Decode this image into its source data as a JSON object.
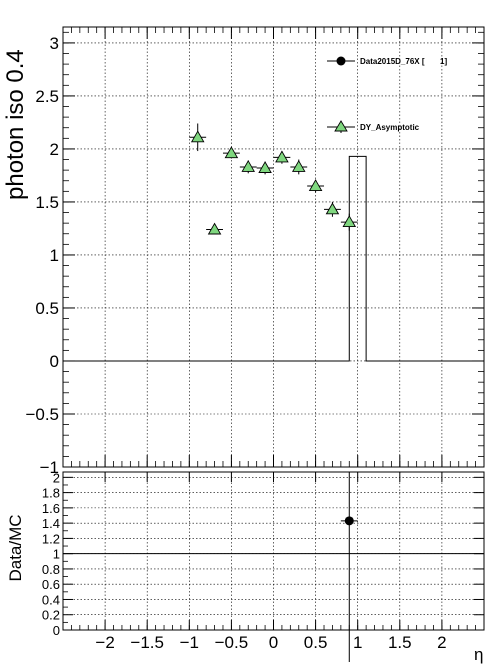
{
  "chart_data": [
    {
      "type": "scatter",
      "ylabel": "photon iso 0.4",
      "xlim": [
        -2.5,
        2.5
      ],
      "ylim": [
        -1,
        3.15
      ],
      "grid": true,
      "legend_position": "top-right",
      "xticks": [
        -2,
        -1.5,
        -1,
        -0.5,
        0,
        0.5,
        1,
        1.5,
        2
      ],
      "yticks": [
        -1,
        -0.5,
        0,
        0.5,
        1,
        1.5,
        2,
        2.5,
        3
      ],
      "xtick_labels": [
        "−2",
        "−1.5",
        "−1",
        "−0.5",
        "0",
        "0.5",
        "1",
        "1.5",
        "2"
      ],
      "ytick_labels": [
        "−1",
        "−0.5",
        "0",
        "0.5",
        "1",
        "1.5",
        "2",
        "2.5",
        "3"
      ],
      "series": [
        {
          "name": "Data2015D_76X [       1]",
          "marker": "circle",
          "color": "#000000",
          "style": "histogram",
          "x": [
            -2.4,
            -2.2,
            -2.0,
            -1.8,
            -1.6,
            -1.4,
            -1.2,
            -1.0,
            -0.8,
            -0.6,
            -0.4,
            -0.2,
            0.0,
            0.2,
            0.4,
            0.6,
            0.8,
            1.0,
            1.2,
            1.4,
            1.6,
            1.8,
            2.0,
            2.2,
            2.4
          ],
          "values": [
            0,
            0,
            0,
            0,
            0,
            0,
            0,
            0,
            0,
            0,
            0,
            0,
            0,
            0,
            0,
            0,
            0,
            1.93,
            0,
            0,
            0,
            0,
            0,
            0,
            0
          ],
          "bin_edges_low": [
            -2.5,
            -2.3,
            -2.1,
            -1.9,
            -1.7,
            -1.5,
            -1.3,
            -1.1,
            -0.9,
            -0.7,
            -0.5,
            -0.3,
            -0.1,
            0.1,
            0.3,
            0.5,
            0.7,
            0.9,
            1.1,
            1.3,
            1.5,
            1.7,
            1.9,
            2.1,
            2.3
          ]
        },
        {
          "name": "DY_Asymptotic",
          "marker": "triangle",
          "color": "#7fd77f",
          "x": [
            -0.9,
            -0.7,
            -0.5,
            -0.3,
            -0.1,
            0.1,
            0.3,
            0.5,
            0.7,
            0.9
          ],
          "values": [
            2.11,
            1.24,
            1.96,
            1.83,
            1.82,
            1.92,
            1.83,
            1.65,
            1.43,
            1.31
          ],
          "yerr": [
            0.13,
            0.04,
            0.05,
            0.06,
            0.06,
            0.06,
            0.07,
            0.06,
            0.07,
            0.08
          ],
          "xerr": 0.1
        }
      ]
    },
    {
      "type": "scatter",
      "ylabel": "Data/MC",
      "xlabel": "η",
      "xlim": [
        -2.5,
        2.5
      ],
      "ylim": [
        0,
        2.07
      ],
      "grid": true,
      "reference_line": 1,
      "yticks": [
        0,
        0.2,
        0.4,
        0.6,
        0.8,
        1,
        1.2,
        1.4,
        1.6,
        1.8,
        2
      ],
      "ytick_labels": [
        "0",
        "0.2",
        "0.4",
        "0.6",
        "0.8",
        "1",
        "1.2",
        "1.4",
        "1.6",
        "1.8",
        "2"
      ],
      "series": [
        {
          "marker": "circle",
          "color": "#000000",
          "x": [
            0.9
          ],
          "values": [
            1.43
          ],
          "yerr": [
            1.5
          ],
          "xerr": 0.1
        }
      ]
    }
  ]
}
